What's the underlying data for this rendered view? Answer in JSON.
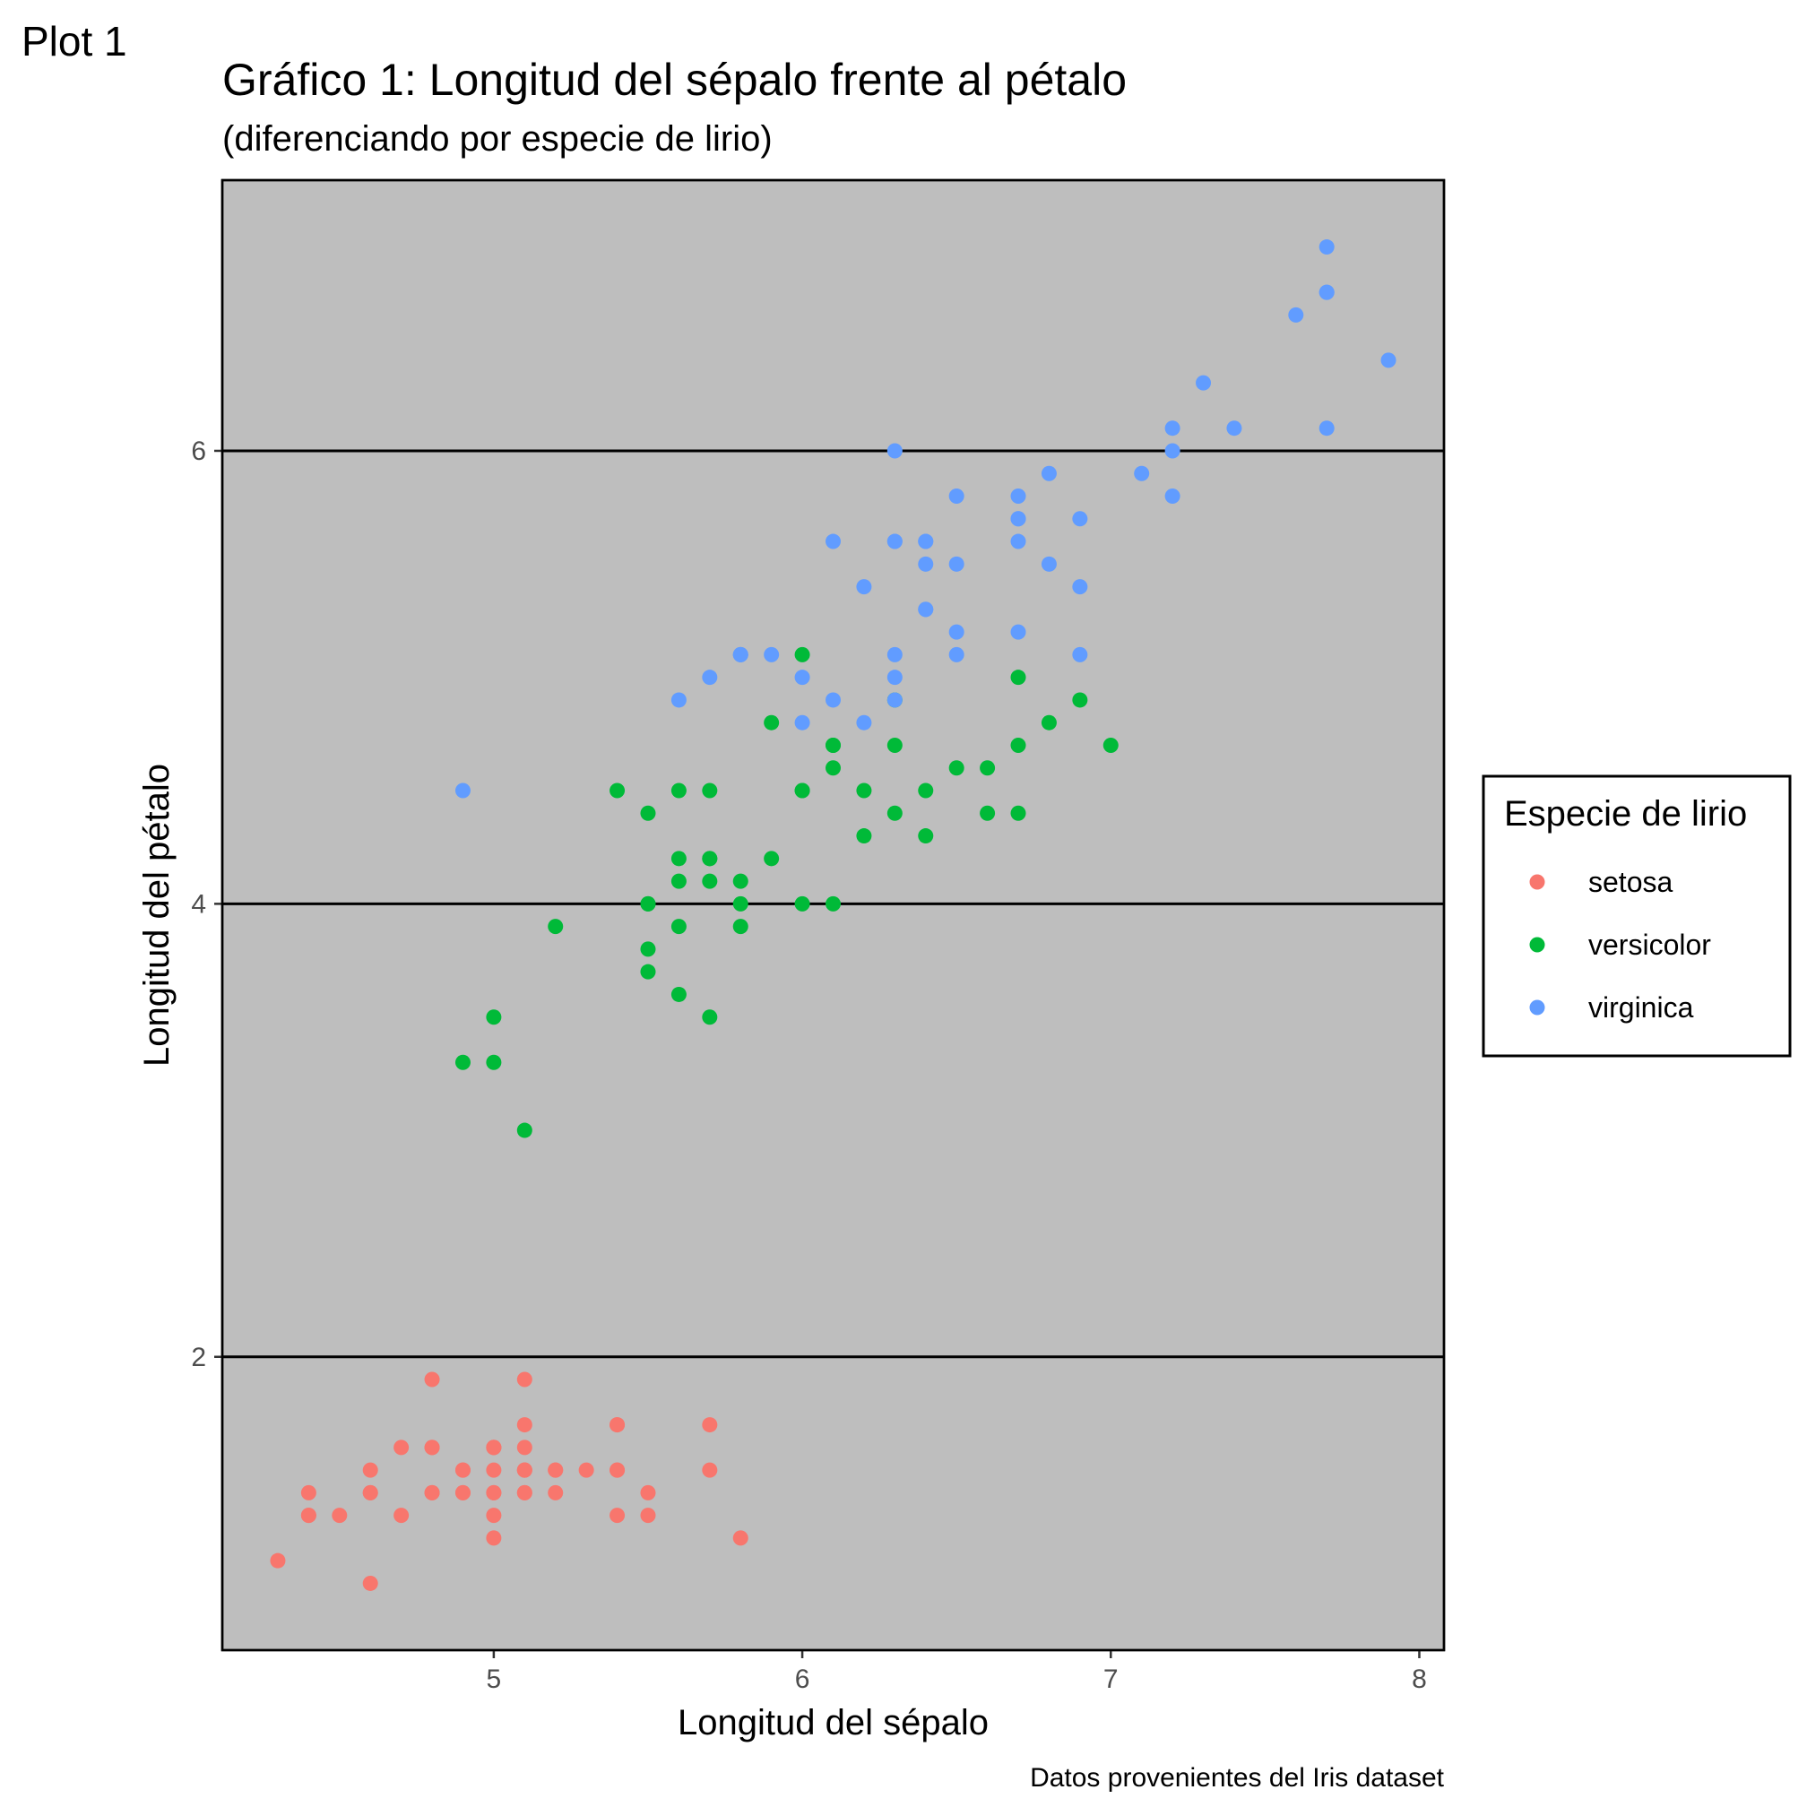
{
  "plot_tag": "Plot 1",
  "colors": {
    "panel_background": "#bebebe",
    "gridline": "#000000",
    "setosa": "#f8766d",
    "versicolor": "#00ba38",
    "virginica": "#619cff"
  },
  "chart_data": {
    "type": "scatter",
    "title": "Gráfico 1: Longitud del sépalo frente al pétalo",
    "subtitle": "(diferenciando por especie de lirio)",
    "xlabel": "Longitud del sépalo",
    "ylabel": "Longitud del pétalo",
    "caption": "Datos provenientes del Iris dataset",
    "xlim": [
      4.12,
      8.08
    ],
    "ylim": [
      0.705,
      7.195
    ],
    "x_ticks": [
      5,
      6,
      7,
      8
    ],
    "x_tick_labels": [
      "5",
      "6",
      "7",
      "8"
    ],
    "y_ticks": [
      2,
      4,
      6
    ],
    "y_tick_labels": [
      "2",
      "4",
      "6"
    ],
    "grid": {
      "major_y": true,
      "major_x": false
    },
    "legend": {
      "title": "Especie de lirio",
      "position": "right"
    },
    "series": [
      {
        "name": "setosa",
        "points": [
          [
            5.1,
            1.4
          ],
          [
            4.9,
            1.4
          ],
          [
            4.7,
            1.3
          ],
          [
            4.6,
            1.5
          ],
          [
            5.0,
            1.4
          ],
          [
            5.4,
            1.7
          ],
          [
            4.6,
            1.4
          ],
          [
            5.0,
            1.5
          ],
          [
            4.4,
            1.4
          ],
          [
            4.9,
            1.5
          ],
          [
            5.4,
            1.5
          ],
          [
            4.8,
            1.6
          ],
          [
            4.8,
            1.4
          ],
          [
            4.3,
            1.1
          ],
          [
            5.8,
            1.2
          ],
          [
            5.7,
            1.5
          ],
          [
            5.4,
            1.3
          ],
          [
            5.1,
            1.4
          ],
          [
            5.7,
            1.7
          ],
          [
            5.1,
            1.5
          ],
          [
            5.4,
            1.7
          ],
          [
            5.1,
            1.5
          ],
          [
            4.6,
            1.0
          ],
          [
            5.1,
            1.7
          ],
          [
            4.8,
            1.9
          ],
          [
            5.0,
            1.6
          ],
          [
            5.0,
            1.6
          ],
          [
            5.2,
            1.5
          ],
          [
            5.2,
            1.4
          ],
          [
            4.7,
            1.6
          ],
          [
            4.8,
            1.6
          ],
          [
            5.4,
            1.5
          ],
          [
            5.2,
            1.5
          ],
          [
            5.5,
            1.4
          ],
          [
            4.9,
            1.5
          ],
          [
            5.0,
            1.2
          ],
          [
            5.5,
            1.3
          ],
          [
            4.9,
            1.4
          ],
          [
            4.4,
            1.3
          ],
          [
            5.1,
            1.5
          ],
          [
            5.0,
            1.3
          ],
          [
            4.5,
            1.3
          ],
          [
            4.4,
            1.3
          ],
          [
            5.0,
            1.6
          ],
          [
            5.1,
            1.9
          ],
          [
            4.8,
            1.4
          ],
          [
            5.1,
            1.6
          ],
          [
            4.6,
            1.4
          ],
          [
            5.3,
            1.5
          ],
          [
            5.0,
            1.4
          ]
        ]
      },
      {
        "name": "versicolor",
        "points": [
          [
            7.0,
            4.7
          ],
          [
            6.4,
            4.5
          ],
          [
            6.9,
            4.9
          ],
          [
            5.5,
            4.0
          ],
          [
            6.5,
            4.6
          ],
          [
            5.7,
            4.5
          ],
          [
            6.3,
            4.7
          ],
          [
            4.9,
            3.3
          ],
          [
            6.6,
            4.6
          ],
          [
            5.2,
            3.9
          ],
          [
            5.0,
            3.5
          ],
          [
            5.9,
            4.2
          ],
          [
            6.0,
            4.0
          ],
          [
            6.1,
            4.7
          ],
          [
            5.6,
            3.6
          ],
          [
            6.7,
            4.4
          ],
          [
            5.6,
            4.5
          ],
          [
            5.8,
            4.1
          ],
          [
            6.2,
            4.5
          ],
          [
            5.6,
            3.9
          ],
          [
            5.9,
            4.8
          ],
          [
            6.1,
            4.0
          ],
          [
            6.3,
            4.9
          ],
          [
            6.1,
            4.7
          ],
          [
            6.4,
            4.3
          ],
          [
            6.6,
            4.4
          ],
          [
            6.8,
            4.8
          ],
          [
            6.7,
            5.0
          ],
          [
            6.0,
            4.5
          ],
          [
            5.7,
            3.5
          ],
          [
            5.5,
            3.8
          ],
          [
            5.5,
            3.7
          ],
          [
            5.8,
            3.9
          ],
          [
            6.0,
            5.1
          ],
          [
            5.4,
            4.5
          ],
          [
            6.0,
            4.5
          ],
          [
            6.7,
            4.7
          ],
          [
            6.3,
            4.4
          ],
          [
            5.6,
            4.1
          ],
          [
            5.5,
            4.0
          ],
          [
            5.5,
            4.4
          ],
          [
            6.1,
            4.6
          ],
          [
            5.8,
            4.0
          ],
          [
            5.0,
            3.3
          ],
          [
            5.6,
            4.2
          ],
          [
            5.7,
            4.2
          ],
          [
            5.7,
            4.2
          ],
          [
            6.2,
            4.3
          ],
          [
            5.1,
            3.0
          ],
          [
            5.7,
            4.1
          ]
        ]
      },
      {
        "name": "virginica",
        "points": [
          [
            6.3,
            6.0
          ],
          [
            5.8,
            5.1
          ],
          [
            7.1,
            5.9
          ],
          [
            6.3,
            5.6
          ],
          [
            6.5,
            5.8
          ],
          [
            7.6,
            6.6
          ],
          [
            4.9,
            4.5
          ],
          [
            7.3,
            6.3
          ],
          [
            6.7,
            5.8
          ],
          [
            7.2,
            6.1
          ],
          [
            6.5,
            5.1
          ],
          [
            6.4,
            5.3
          ],
          [
            6.8,
            5.5
          ],
          [
            5.7,
            5.0
          ],
          [
            5.8,
            5.1
          ],
          [
            6.4,
            5.3
          ],
          [
            6.5,
            5.5
          ],
          [
            7.7,
            6.7
          ],
          [
            7.7,
            6.9
          ],
          [
            6.0,
            5.0
          ],
          [
            6.9,
            5.7
          ],
          [
            5.6,
            4.9
          ],
          [
            7.7,
            6.7
          ],
          [
            6.3,
            4.9
          ],
          [
            6.7,
            5.7
          ],
          [
            7.2,
            6.0
          ],
          [
            6.2,
            4.8
          ],
          [
            6.1,
            4.9
          ],
          [
            6.4,
            5.6
          ],
          [
            7.2,
            5.8
          ],
          [
            7.4,
            6.1
          ],
          [
            7.9,
            6.4
          ],
          [
            6.4,
            5.6
          ],
          [
            6.3,
            5.1
          ],
          [
            6.1,
            5.6
          ],
          [
            7.7,
            6.1
          ],
          [
            6.3,
            5.6
          ],
          [
            6.4,
            5.5
          ],
          [
            6.0,
            4.8
          ],
          [
            6.9,
            5.4
          ],
          [
            6.7,
            5.6
          ],
          [
            6.9,
            5.1
          ],
          [
            5.8,
            5.1
          ],
          [
            6.8,
            5.9
          ],
          [
            6.7,
            5.7
          ],
          [
            6.7,
            5.2
          ],
          [
            6.3,
            5.0
          ],
          [
            6.5,
            5.2
          ],
          [
            6.2,
            5.4
          ],
          [
            5.9,
            5.1
          ]
        ]
      }
    ]
  }
}
